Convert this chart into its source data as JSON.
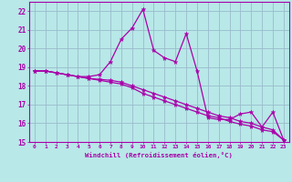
{
  "title": "",
  "xlabel": "Windchill (Refroidissement éolien,°C)",
  "ylabel": "",
  "background_color": "#b8e8e8",
  "grid_color": "#99bbcc",
  "line_color": "#aa00aa",
  "x": [
    0,
    1,
    2,
    3,
    4,
    5,
    6,
    7,
    8,
    9,
    10,
    11,
    12,
    13,
    14,
    15,
    16,
    17,
    18,
    19,
    20,
    21,
    22,
    23
  ],
  "line1": [
    18.8,
    18.8,
    18.7,
    18.6,
    18.5,
    18.5,
    18.6,
    19.3,
    20.5,
    21.1,
    22.1,
    19.9,
    19.5,
    19.3,
    20.8,
    18.8,
    16.3,
    16.2,
    16.2,
    16.5,
    16.6,
    15.8,
    16.6,
    15.1
  ],
  "line2": [
    18.8,
    18.8,
    18.7,
    18.6,
    18.5,
    18.4,
    18.35,
    18.3,
    18.2,
    18.0,
    17.8,
    17.6,
    17.4,
    17.2,
    17.0,
    16.8,
    16.6,
    16.4,
    16.3,
    16.1,
    16.0,
    15.8,
    15.65,
    15.1
  ],
  "line3": [
    18.8,
    18.8,
    18.7,
    18.6,
    18.5,
    18.4,
    18.3,
    18.2,
    18.1,
    17.9,
    17.6,
    17.4,
    17.2,
    17.0,
    16.8,
    16.6,
    16.4,
    16.3,
    16.1,
    15.95,
    15.85,
    15.65,
    15.55,
    15.1
  ],
  "ylim": [
    15,
    22.5
  ],
  "xlim": [
    -0.5,
    23.5
  ],
  "yticks": [
    15,
    16,
    17,
    18,
    19,
    20,
    21,
    22
  ],
  "xticks": [
    0,
    1,
    2,
    3,
    4,
    5,
    6,
    7,
    8,
    9,
    10,
    11,
    12,
    13,
    14,
    15,
    16,
    17,
    18,
    19,
    20,
    21,
    22,
    23
  ]
}
